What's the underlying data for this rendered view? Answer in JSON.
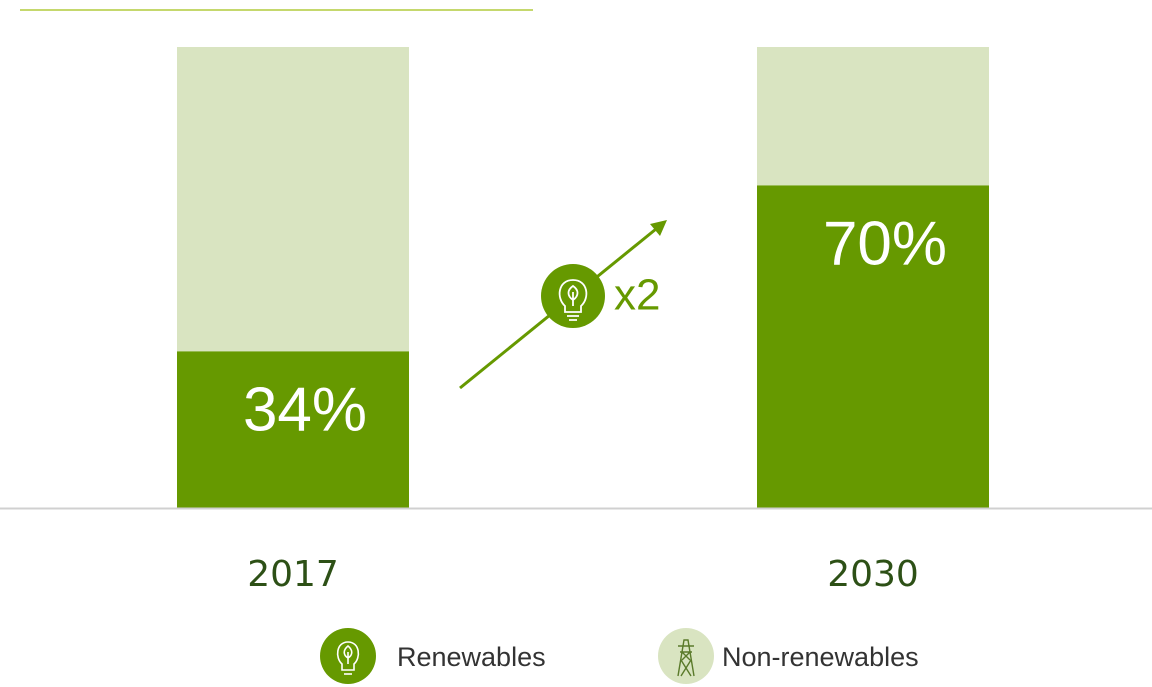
{
  "chart_data": {
    "type": "stacked_bar",
    "categories": [
      "2017",
      "2030"
    ],
    "series": [
      {
        "name": "Renewables",
        "color": "#669900",
        "values": [
          34,
          70
        ],
        "value_labels": [
          "34%",
          "70%"
        ]
      },
      {
        "name": "Non-renewables",
        "color": "#d9e4c1",
        "values": [
          66,
          30
        ]
      }
    ],
    "ylim": [
      0,
      100
    ],
    "annotation": "x2"
  }
}
